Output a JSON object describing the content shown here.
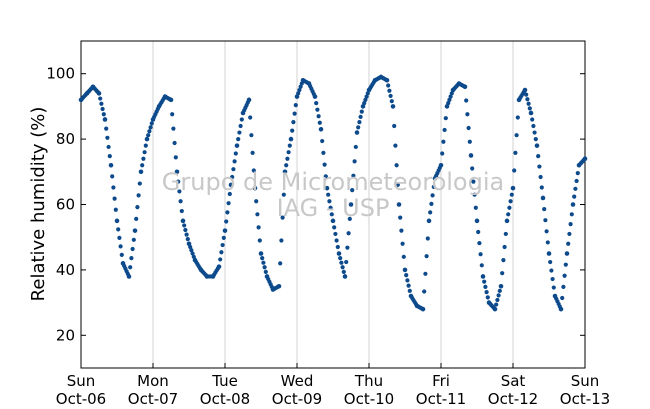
{
  "chart_data": {
    "type": "scatter",
    "ylabel": "Relative humidity (%)",
    "ylim": [
      10,
      110
    ],
    "yticks": [
      20,
      40,
      60,
      80,
      100
    ],
    "xlim": [
      "2013-10-06",
      "2013-10-13"
    ],
    "xticks": [
      {
        "date": "2013-10-06",
        "day": "Sun",
        "label": "Oct-06"
      },
      {
        "date": "2013-10-07",
        "day": "Mon",
        "label": "Oct-07"
      },
      {
        "date": "2013-10-08",
        "day": "Tue",
        "label": "Oct-08"
      },
      {
        "date": "2013-10-09",
        "day": "Wed",
        "label": "Oct-09"
      },
      {
        "date": "2013-10-10",
        "day": "Thu",
        "label": "Oct-10"
      },
      {
        "date": "2013-10-11",
        "day": "Fri",
        "label": "Oct-11"
      },
      {
        "date": "2013-10-12",
        "day": "Sat",
        "label": "Oct-12"
      },
      {
        "date": "2013-10-13",
        "day": "Sun",
        "label": "Oct-13"
      }
    ],
    "grid": "vertical",
    "marker_color": "#0d4a8c",
    "series": [
      {
        "x": [
          "2013-10-06 00:00",
          "2013-10-06 02:00",
          "2013-10-06 04:00",
          "2013-10-06 06:00",
          "2013-10-06 08:00",
          "2013-10-06 10:00",
          "2013-10-06 12:00",
          "2013-10-06 14:00",
          "2013-10-06 16:00",
          "2013-10-06 18:00",
          "2013-10-06 20:00",
          "2013-10-06 22:00",
          "2013-10-07 00:00",
          "2013-10-07 02:00",
          "2013-10-07 04:00",
          "2013-10-07 06:00",
          "2013-10-07 08:00",
          "2013-10-07 10:00",
          "2013-10-07 12:00",
          "2013-10-07 14:00",
          "2013-10-07 16:00",
          "2013-10-07 18:00",
          "2013-10-07 20:00",
          "2013-10-07 22:00",
          "2013-10-08 00:00",
          "2013-10-08 02:00",
          "2013-10-08 04:00",
          "2013-10-08 06:00",
          "2013-10-08 08:00",
          "2013-10-08 10:00",
          "2013-10-08 12:00",
          "2013-10-08 14:00",
          "2013-10-08 16:00",
          "2013-10-08 18:00",
          "2013-10-08 20:00",
          "2013-10-08 22:00",
          "2013-10-09 00:00",
          "2013-10-09 02:00",
          "2013-10-09 04:00",
          "2013-10-09 06:00",
          "2013-10-09 08:00",
          "2013-10-09 10:00",
          "2013-10-09 12:00",
          "2013-10-09 14:00",
          "2013-10-09 16:00",
          "2013-10-09 18:00",
          "2013-10-09 20:00",
          "2013-10-09 22:00",
          "2013-10-10 00:00",
          "2013-10-10 02:00",
          "2013-10-10 04:00",
          "2013-10-10 06:00",
          "2013-10-10 08:00",
          "2013-10-10 10:00",
          "2013-10-10 12:00",
          "2013-10-10 14:00",
          "2013-10-10 16:00",
          "2013-10-10 18:00",
          "2013-10-10 20:00",
          "2013-10-10 22:00",
          "2013-10-11 00:00",
          "2013-10-11 02:00",
          "2013-10-11 04:00",
          "2013-10-11 06:00",
          "2013-10-11 08:00",
          "2013-10-11 10:00",
          "2013-10-11 12:00",
          "2013-10-11 14:00",
          "2013-10-11 16:00",
          "2013-10-11 18:00",
          "2013-10-11 20:00",
          "2013-10-11 22:00",
          "2013-10-12 00:00",
          "2013-10-12 02:00",
          "2013-10-12 04:00",
          "2013-10-12 06:00",
          "2013-10-12 08:00",
          "2013-10-12 10:00",
          "2013-10-12 12:00",
          "2013-10-12 14:00",
          "2013-10-12 16:00",
          "2013-10-12 18:00",
          "2013-10-12 20:00",
          "2013-10-12 22:00",
          "2013-10-13 00:00"
        ],
        "y": [
          92,
          94,
          96,
          94,
          86,
          72,
          55,
          42,
          38,
          52,
          70,
          80,
          86,
          90,
          93,
          92,
          70,
          55,
          48,
          43,
          40,
          38,
          38,
          41,
          52,
          66,
          78,
          88,
          92,
          65,
          45,
          38,
          34,
          35,
          70,
          80,
          93,
          98,
          97,
          93,
          83,
          65,
          55,
          45,
          38,
          60,
          82,
          90,
          95,
          98,
          99,
          98,
          90,
          60,
          40,
          32,
          29,
          28,
          55,
          68,
          72,
          90,
          95,
          97,
          96,
          75,
          55,
          38,
          30,
          28,
          35,
          55,
          65,
          92,
          95,
          88,
          78,
          62,
          45,
          32,
          28,
          45,
          60,
          72,
          74
        ]
      }
    ]
  },
  "watermark": {
    "line1": "Grupo de Micrometeorologia",
    "line2": "IAG - USP"
  }
}
